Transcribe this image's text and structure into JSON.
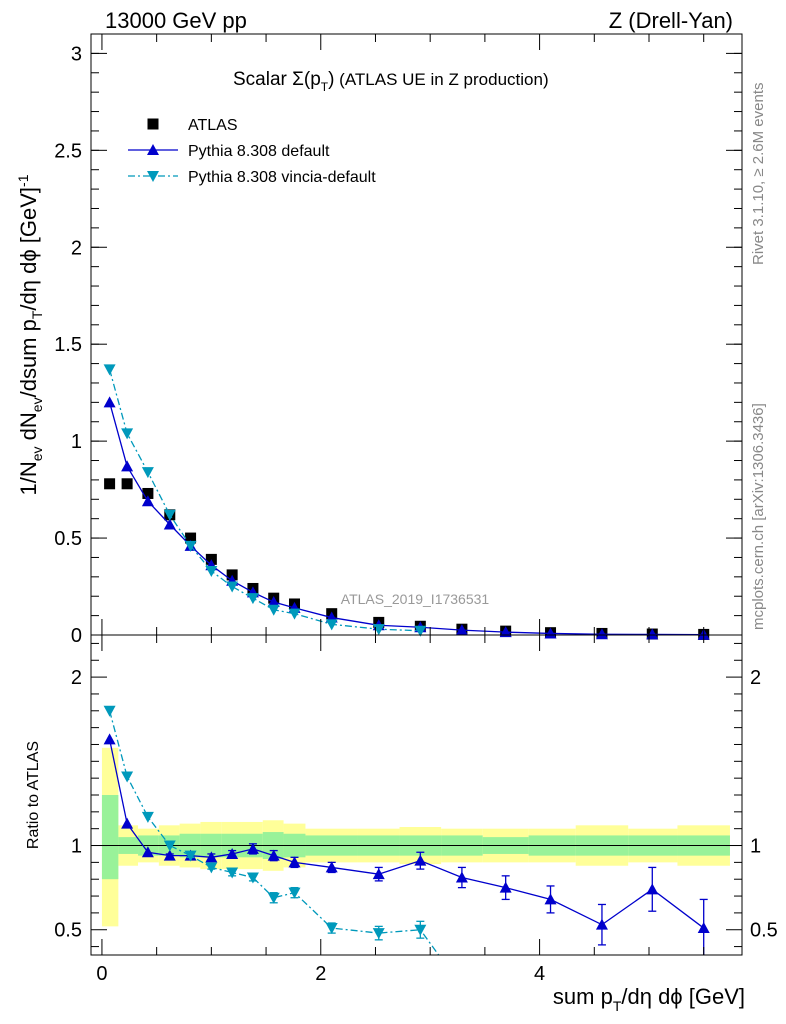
{
  "header": {
    "left": "13000 GeV pp",
    "right": "Z (Drell-Yan)"
  },
  "side_text": {
    "rivet": "Rivet 3.1.10, ≥ 2.6M events",
    "mcplots": "mcplots.cern.ch [arXiv:1306.3436]"
  },
  "watermark": "ATLAS_2019_I1736531",
  "colors": {
    "data": "#000000",
    "default": "#0000cc",
    "vincia": "#0099bb",
    "band_inner": "#99f299",
    "band_outer": "#ffff99"
  },
  "chart_data": [
    {
      "type": "line",
      "panel": "main",
      "title_main": "Scalar Σ(p",
      "title_sub": "T",
      "title_close": ")",
      "title_rest": " (ATLAS UE in Z production)",
      "ylabel_parts": [
        "1/N",
        "ev",
        " dN",
        "ev",
        "/dsum p",
        "T",
        "/dη dϕ  [GeV]",
        "-1"
      ],
      "xlim": [
        -0.1,
        5.85
      ],
      "ylim": [
        0,
        3.1
      ],
      "yticks": [
        0,
        0.5,
        1,
        1.5,
        2,
        2.5,
        3
      ],
      "ytick_labels": [
        "0",
        "0.5",
        "1",
        "1.5",
        "2",
        "2.5",
        "3"
      ],
      "legend_position": "top-left",
      "series": [
        {
          "name": "ATLAS",
          "style": "data",
          "x": [
            0.07,
            0.23,
            0.42,
            0.62,
            0.81,
            1.0,
            1.19,
            1.38,
            1.57,
            1.76,
            2.1,
            2.53,
            2.91,
            3.29,
            3.69,
            4.1,
            4.57,
            5.03,
            5.5
          ],
          "y": [
            0.78,
            0.78,
            0.73,
            0.62,
            0.5,
            0.39,
            0.31,
            0.24,
            0.19,
            0.16,
            0.11,
            0.065,
            0.045,
            0.03,
            0.02,
            0.012,
            0.008,
            0.005,
            0.003
          ]
        },
        {
          "name": "Pythia 8.308 default",
          "style": "default",
          "x": [
            0.07,
            0.23,
            0.42,
            0.62,
            0.81,
            1.0,
            1.19,
            1.38,
            1.57,
            1.76,
            2.1,
            2.53,
            2.91,
            3.29,
            3.69,
            4.1,
            4.57,
            5.03,
            5.5
          ],
          "y": [
            1.2,
            0.87,
            0.69,
            0.57,
            0.46,
            0.36,
            0.28,
            0.22,
            0.17,
            0.14,
            0.09,
            0.05,
            0.04,
            0.025,
            0.015,
            0.008,
            0.004,
            0.003,
            0.0015
          ]
        },
        {
          "name": "Pythia 8.308 vincia-default",
          "style": "vincia",
          "x": [
            0.07,
            0.23,
            0.42,
            0.62,
            0.81,
            1.0,
            1.19,
            1.38,
            1.57,
            1.76,
            2.1,
            2.53,
            2.91
          ],
          "y": [
            1.37,
            1.04,
            0.84,
            0.62,
            0.46,
            0.33,
            0.25,
            0.19,
            0.13,
            0.11,
            0.055,
            0.03,
            0.022
          ]
        }
      ]
    },
    {
      "type": "line",
      "panel": "ratio",
      "ylabel": "Ratio to ATLAS",
      "xlabel_parts": [
        "sum p",
        "T",
        "/dη dϕ [GeV]"
      ],
      "xlim": [
        -0.1,
        5.85
      ],
      "ylim": [
        0.35,
        2.25
      ],
      "xticks": [
        0,
        2,
        4
      ],
      "xtick_labels": [
        "0",
        "2",
        "4"
      ],
      "yticks": [
        0.5,
        1,
        2
      ],
      "ytick_labels": [
        "0.5",
        "1",
        "2"
      ],
      "bin_edges": [
        0.0,
        0.15,
        0.33,
        0.52,
        0.71,
        0.9,
        1.09,
        1.28,
        1.47,
        1.66,
        1.86,
        2.34,
        2.72,
        3.1,
        3.48,
        3.9,
        4.33,
        4.81,
        5.26,
        5.74
      ],
      "band_inner": [
        [
          0.8,
          1.3
        ],
        [
          0.95,
          1.05
        ],
        [
          0.94,
          1.06
        ],
        [
          0.94,
          1.06
        ],
        [
          0.93,
          1.07
        ],
        [
          0.93,
          1.07
        ],
        [
          0.93,
          1.07
        ],
        [
          0.93,
          1.07
        ],
        [
          0.92,
          1.08
        ],
        [
          0.93,
          1.07
        ],
        [
          0.94,
          1.06
        ],
        [
          0.94,
          1.06
        ],
        [
          0.94,
          1.06
        ],
        [
          0.94,
          1.06
        ],
        [
          0.95,
          1.05
        ],
        [
          0.94,
          1.06
        ],
        [
          0.94,
          1.06
        ],
        [
          0.94,
          1.06
        ],
        [
          0.94,
          1.06
        ]
      ],
      "band_outer": [
        [
          0.52,
          1.58
        ],
        [
          0.88,
          1.12
        ],
        [
          0.9,
          1.1
        ],
        [
          0.88,
          1.12
        ],
        [
          0.87,
          1.13
        ],
        [
          0.86,
          1.14
        ],
        [
          0.86,
          1.14
        ],
        [
          0.86,
          1.14
        ],
        [
          0.85,
          1.15
        ],
        [
          0.87,
          1.13
        ],
        [
          0.9,
          1.1
        ],
        [
          0.9,
          1.1
        ],
        [
          0.89,
          1.11
        ],
        [
          0.9,
          1.1
        ],
        [
          0.9,
          1.1
        ],
        [
          0.9,
          1.1
        ],
        [
          0.88,
          1.12
        ],
        [
          0.9,
          1.1
        ],
        [
          0.88,
          1.12
        ]
      ],
      "series": [
        {
          "name": "Pythia 8.308 default",
          "style": "default",
          "x": [
            0.07,
            0.23,
            0.42,
            0.62,
            0.81,
            1.0,
            1.19,
            1.38,
            1.57,
            1.76,
            2.1,
            2.53,
            2.91,
            3.29,
            3.69,
            4.1,
            4.57,
            5.03,
            5.5
          ],
          "y": [
            1.63,
            1.13,
            0.96,
            0.94,
            0.94,
            0.93,
            0.95,
            0.98,
            0.94,
            0.9,
            0.87,
            0.83,
            0.91,
            0.81,
            0.75,
            0.68,
            0.53,
            0.74,
            0.51
          ],
          "err": [
            0,
            0,
            0,
            0.01,
            0.01,
            0.02,
            0.02,
            0.03,
            0.03,
            0.03,
            0.03,
            0.04,
            0.05,
            0.06,
            0.07,
            0.08,
            0.12,
            0.13,
            0.17
          ]
        },
        {
          "name": "Pythia 8.308 vincia-default",
          "style": "vincia",
          "x": [
            0.07,
            0.23,
            0.42,
            0.62,
            0.81,
            1.0,
            1.19,
            1.38,
            1.57,
            1.76,
            2.1,
            2.53,
            2.91,
            3.1
          ],
          "y": [
            1.8,
            1.41,
            1.17,
            1.0,
            0.94,
            0.87,
            0.84,
            0.81,
            0.69,
            0.72,
            0.51,
            0.48,
            0.5,
            0.33
          ],
          "err": [
            0,
            0,
            0,
            0,
            0.01,
            0.01,
            0.02,
            0.02,
            0.03,
            0.03,
            0.03,
            0.04,
            0.05,
            0
          ],
          "marker_count": 13
        }
      ]
    }
  ]
}
